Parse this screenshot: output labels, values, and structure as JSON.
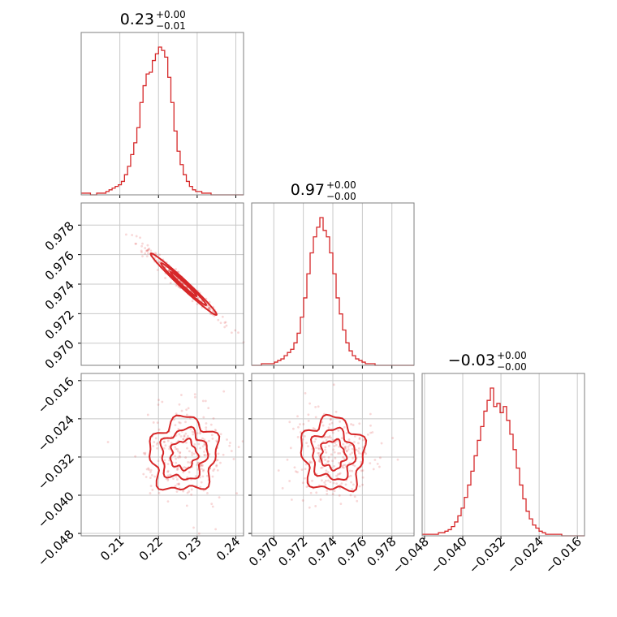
{
  "chart_data": {
    "type": "corner",
    "color": "#d62728",
    "parameters": [
      {
        "title_value": "0.23",
        "title_plus": "+0.00",
        "title_minus": "−0.01"
      },
      {
        "title_value": "0.97",
        "title_plus": "+0.00",
        "title_minus": "−0.00"
      },
      {
        "title_value": "−0.03",
        "title_plus": "+0.00",
        "title_minus": "−0.00"
      }
    ],
    "ranges": [
      [
        0.2,
        0.242
      ],
      [
        0.9685,
        0.9795
      ],
      [
        -0.0485,
        -0.0145
      ]
    ],
    "ticks": {
      "p0": [
        0.21,
        0.22,
        0.23,
        0.24
      ],
      "p0_labels": [
        "0.21",
        "0.22",
        "0.23",
        "0.24"
      ],
      "p1": [
        0.97,
        0.972,
        0.974,
        0.976,
        0.978
      ],
      "p1_labels": [
        "0.970",
        "0.972",
        "0.974",
        "0.976",
        "0.978"
      ],
      "p2": [
        -0.048,
        -0.04,
        -0.032,
        -0.024,
        -0.016
      ],
      "p2_labels": [
        "−0.048",
        "−0.040",
        "−0.032",
        "−0.024",
        "−0.016"
      ]
    },
    "histograms": {
      "p0": {
        "edges_start": 0.2,
        "bin_width": 0.0008,
        "counts": [
          1,
          1,
          1,
          0,
          0,
          1,
          1,
          1,
          2,
          3,
          4,
          5,
          6,
          8,
          12,
          17,
          24,
          31,
          40,
          55,
          65,
          72,
          73,
          80,
          84,
          88,
          86,
          82,
          70,
          55,
          38,
          26,
          18,
          12,
          8,
          5,
          3,
          2,
          2,
          1,
          1,
          1,
          0,
          0,
          0,
          0,
          0,
          0,
          0,
          0,
          0,
          0,
          0
        ]
      },
      "p1": {
        "edges_start": 0.9685,
        "bin_width": 0.00022,
        "counts": [
          0,
          0,
          0,
          1,
          1,
          1,
          1,
          2,
          3,
          4,
          6,
          8,
          10,
          14,
          20,
          30,
          42,
          57,
          70,
          80,
          86,
          92,
          84,
          80,
          70,
          57,
          42,
          32,
          22,
          14,
          9,
          6,
          4,
          3,
          2,
          1,
          1,
          1,
          0,
          0,
          0,
          0,
          0,
          0,
          0,
          0,
          0,
          0,
          0,
          0
        ]
      },
      "p2": {
        "edges_start": -0.0485,
        "bin_width": 0.00068,
        "counts": [
          1,
          1,
          1,
          1,
          1,
          2,
          2,
          3,
          4,
          6,
          9,
          13,
          18,
          25,
          33,
          42,
          52,
          62,
          71,
          81,
          88,
          96,
          84,
          86,
          80,
          84,
          75,
          66,
          56,
          44,
          33,
          24,
          16,
          11,
          7,
          5,
          3,
          2,
          1,
          1,
          1,
          1,
          1,
          0,
          0,
          0,
          0,
          0,
          0,
          0
        ]
      }
    },
    "correlations": {
      "p0_p1": "strong negative",
      "p0_p2": "weak",
      "p1_p2": "weak"
    },
    "centers": [
      0.2265,
      0.974,
      -0.0315
    ],
    "sigmas": [
      0.0045,
      0.0011,
      0.004
    ]
  }
}
